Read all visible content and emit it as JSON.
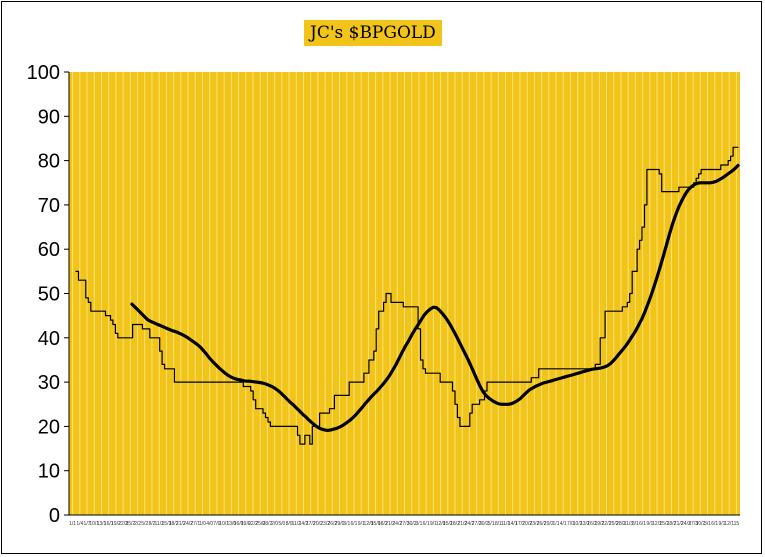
{
  "chart_data": {
    "type": "line",
    "title": "JC's $BPGOLD",
    "ylim": [
      0,
      100
    ],
    "y_ticks": [
      "0",
      "10",
      "20",
      "30",
      "40",
      "50",
      "60",
      "70",
      "80",
      "90",
      "100"
    ],
    "x_tick_labels": [
      "1/1",
      "1/4",
      "1/7",
      "10/1",
      "13/1",
      "16/1",
      "19/2",
      "22/3",
      "25/2",
      "2/2",
      "5/2",
      "8/2",
      "11/2",
      "15/3",
      "18/2",
      "21/2",
      "24/2",
      "27/1",
      "1/0",
      "4/0",
      "7/0",
      "10/1",
      "13/0",
      "16/0",
      "19/0",
      "22/2",
      "25/0",
      "28/2",
      "2/0",
      "5/0",
      "8/0",
      "11/2",
      "14/2",
      "17/2",
      "20/2",
      "23/2",
      "26/2",
      "29/0",
      "3/1",
      "6/1",
      "9/1",
      "12/0",
      "15/0",
      "18/2",
      "21/2",
      "24/2",
      "27/3",
      "30/2",
      "3/1",
      "6/1",
      "9/1",
      "12/0",
      "15/2",
      "18/2",
      "21/2",
      "24/2",
      "27/2",
      "30/2",
      "5/1",
      "8/1",
      "11/1",
      "14/1",
      "17/2",
      "20/2",
      "23/2",
      "26/2",
      "29/2",
      "1/1",
      "4/1",
      "7/0",
      "10/2",
      "13/2",
      "16/2",
      "19/2",
      "22/2",
      "25/2",
      "28/2",
      "31/3",
      "3/1",
      "6/1",
      "9/1",
      "12/2",
      "15/2",
      "18/2",
      "21/2",
      "24/3",
      "27/3",
      "30/2",
      "3/1",
      "6/1",
      "9/1",
      "12/1",
      "15"
    ],
    "grid": true,
    "colors": {
      "plot_bg": "#f2c318",
      "gridline": "#f7e47a",
      "series": "#000000"
    },
    "series": [
      {
        "style": "thin",
        "values": [
          55,
          53,
          53,
          53,
          49,
          48,
          46,
          46,
          46,
          46,
          46,
          46,
          45,
          45,
          44,
          43,
          41,
          40,
          40,
          40,
          40,
          40,
          40,
          43,
          43,
          43,
          43,
          42,
          42,
          42,
          40,
          40,
          40,
          40,
          37,
          34,
          33,
          33,
          33,
          33,
          30,
          30,
          30,
          30,
          30,
          30,
          30,
          30,
          30,
          30,
          30,
          30,
          30,
          30,
          30,
          30,
          30,
          30,
          30,
          30,
          30,
          30,
          30,
          30,
          30,
          30,
          30,
          30,
          29,
          29,
          29,
          28,
          26,
          24,
          24,
          24,
          23,
          22,
          21,
          20,
          20,
          20,
          20,
          20,
          20,
          20,
          20,
          20,
          20,
          20,
          18,
          16,
          16,
          18,
          18,
          16,
          20,
          20,
          20,
          23,
          23,
          23,
          23,
          24,
          24,
          27,
          27,
          27,
          27,
          27,
          27,
          30,
          30,
          30,
          30,
          30,
          30,
          32,
          32,
          35,
          35,
          37,
          42,
          46,
          46,
          48,
          50,
          50,
          48,
          48,
          48,
          48,
          48,
          47,
          47,
          47,
          47,
          47,
          47,
          42,
          35,
          33,
          32,
          32,
          32,
          32,
          32,
          32,
          30,
          30,
          30,
          30,
          30,
          28,
          25,
          22,
          20,
          20,
          20,
          20,
          23,
          25,
          25,
          25,
          26,
          26,
          28,
          30,
          30,
          30,
          30,
          30,
          30,
          30,
          30,
          30,
          30,
          30,
          30,
          30,
          30,
          30,
          30,
          30,
          30,
          31,
          31,
          31,
          33,
          33,
          33,
          33,
          33,
          33,
          33,
          33,
          33,
          33,
          33,
          33,
          33,
          33,
          33,
          33,
          33,
          33,
          33,
          33,
          33,
          33,
          33,
          34,
          34,
          40,
          40,
          46,
          46,
          46,
          46,
          46,
          46,
          46,
          47,
          47,
          48,
          50,
          55,
          55,
          60,
          62,
          65,
          70,
          78,
          78,
          78,
          78,
          78,
          77,
          73,
          73,
          73,
          73,
          73,
          73,
          73,
          74,
          74,
          74,
          74,
          74,
          74,
          75,
          76,
          77,
          78,
          78,
          78,
          78,
          78,
          78,
          78,
          78,
          79,
          79,
          79,
          80,
          81,
          83,
          83,
          83
        ]
      },
      {
        "style": "thick",
        "values": [
          null,
          null,
          null,
          null,
          null,
          null,
          null,
          null,
          null,
          null,
          null,
          null,
          null,
          null,
          null,
          null,
          null,
          null,
          47.6,
          46.9,
          46.2,
          45.5,
          44.8,
          44.1,
          43.7,
          43.4,
          43.1,
          42.8,
          42.5,
          42.2,
          41.9,
          41.6,
          41.4,
          41.1,
          40.8,
          40.4,
          40.0,
          39.5,
          39.0,
          38.5,
          37.9,
          37.1,
          36.3,
          35.4,
          34.6,
          33.9,
          33.2,
          32.6,
          32.0,
          31.5,
          31.1,
          30.8,
          30.6,
          30.5,
          30.3,
          30.2,
          30.2,
          30.1,
          30.0,
          29.9,
          29.8,
          29.6,
          29.3,
          29.0,
          28.6,
          28.1,
          27.5,
          26.8,
          26.1,
          25.4,
          24.8,
          24.1,
          23.4,
          22.7,
          22.1,
          21.4,
          20.8,
          20.2,
          19.7,
          19.4,
          19.2,
          19.1,
          19.2,
          19.4,
          19.6,
          19.9,
          20.3,
          20.8,
          21.3,
          21.9,
          22.6,
          23.4,
          24.2,
          25.1,
          25.9,
          26.7,
          27.4,
          28.1,
          28.9,
          29.7,
          30.6,
          31.6,
          32.8,
          34.0,
          35.4,
          36.8,
          38.1,
          39.3,
          40.6,
          41.8,
          42.9,
          44.0,
          45.1,
          45.9,
          46.5,
          46.9,
          46.8,
          46.2,
          45.4,
          44.5,
          43.4,
          42.2,
          40.9,
          39.5,
          38.1,
          36.7,
          35.3,
          33.8,
          32.2,
          30.6,
          29.1,
          27.8,
          26.9,
          26.3,
          25.8,
          25.4,
          25.1,
          25.0,
          25.0,
          25.0,
          25.1,
          25.4,
          25.8,
          26.3,
          27.0,
          27.7,
          28.3,
          28.7,
          29.1,
          29.4,
          29.7,
          29.9,
          30.1,
          30.3,
          30.5,
          30.7,
          30.9,
          31.1,
          31.3,
          31.5,
          31.7,
          31.9,
          32.1,
          32.3,
          32.5,
          32.7,
          32.9,
          33.0,
          33.1,
          33.2,
          33.4,
          33.7,
          34.2,
          34.9,
          35.7,
          36.6,
          37.4,
          38.3,
          39.3,
          40.4,
          41.5,
          42.8,
          44.2,
          45.8,
          47.6,
          49.5,
          51.6,
          53.8,
          56.1,
          58.5,
          61.0,
          63.5,
          65.8,
          67.8,
          69.6,
          71.1,
          72.4,
          73.4,
          74.1,
          74.6,
          74.9,
          75.0,
          75.0,
          75.0,
          75.0,
          75.1,
          75.3,
          75.7,
          76.1,
          76.6,
          77.1,
          77.6,
          78.2,
          78.9
        ]
      }
    ]
  }
}
